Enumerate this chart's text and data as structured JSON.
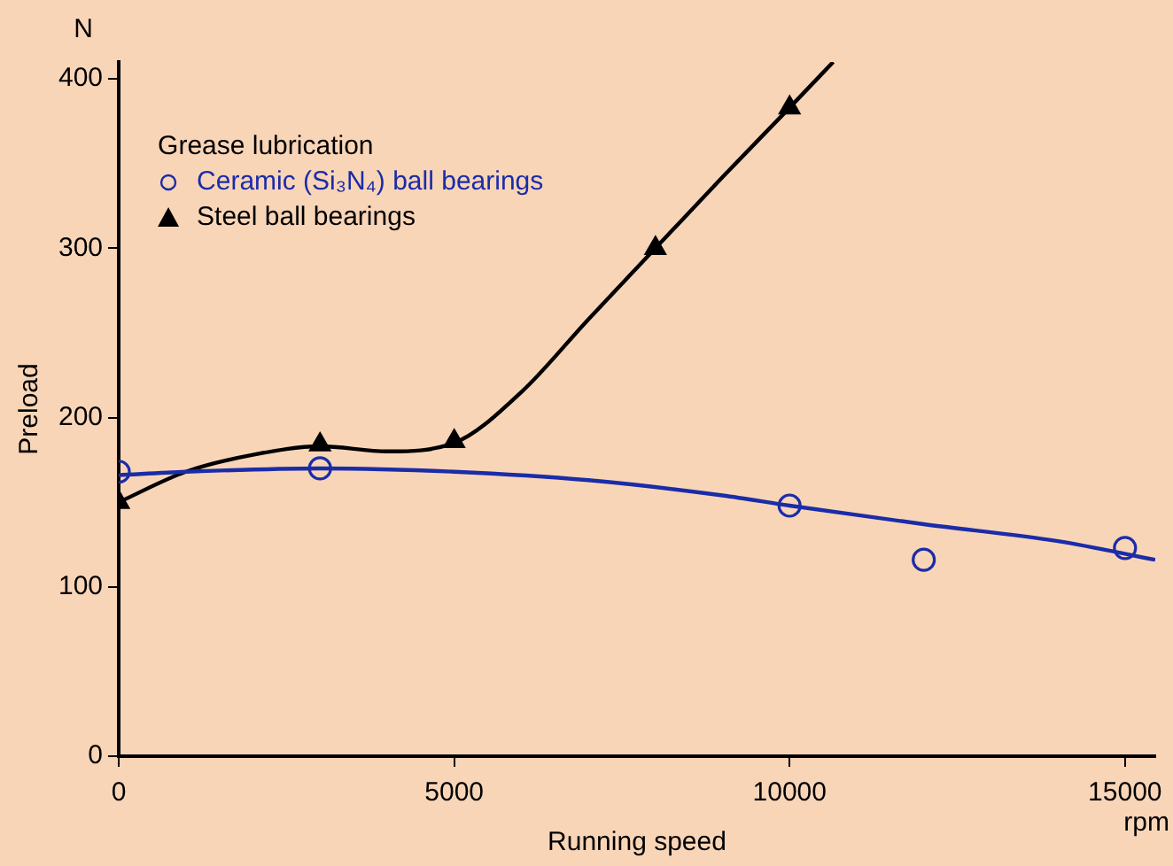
{
  "chart_data": {
    "type": "scatter",
    "xlabel": "Running speed",
    "ylabel": "Preload",
    "legend_title": "Grease lubrication",
    "annotations": [
      "N",
      "rpm"
    ],
    "xlim": [
      0,
      15450
    ],
    "xticks": [
      0,
      5000,
      10000,
      15000
    ],
    "ylim": [
      0,
      410
    ],
    "yticks": [
      0,
      100,
      200,
      300,
      400
    ],
    "grid": false,
    "legend": "top left",
    "series": [
      {
        "type": "line",
        "marker": "none",
        "color": "#1a2ca8",
        "x": [
          0,
          1000,
          3000,
          5000,
          7000,
          9000,
          10000,
          12000,
          14000,
          15450
        ],
        "values": [
          166,
          168,
          170,
          168,
          163,
          154,
          148,
          137,
          127,
          116
        ]
      },
      {
        "type": "line",
        "marker": "none",
        "color": "#000000",
        "x": [
          0,
          1000,
          2000,
          3000,
          4000,
          5000,
          6000,
          7000,
          8000,
          9000,
          10000,
          10650
        ],
        "values": [
          150,
          168,
          178,
          183,
          180,
          185,
          215,
          258,
          300,
          342,
          383,
          410
        ]
      },
      {
        "name": "Ceramic (Si₃N₄) ball bearings",
        "marker": "circle",
        "color": "#1a2ca8",
        "x": [
          0,
          3000,
          10000,
          12000,
          15000
        ],
        "values": [
          168,
          170,
          148,
          116,
          123
        ]
      },
      {
        "name": "Steel ball bearings",
        "marker": "triangle",
        "color": "#000000",
        "x": [
          0,
          3000,
          5000,
          8000,
          10000
        ],
        "values": [
          150,
          184,
          186,
          300,
          383
        ]
      }
    ]
  }
}
